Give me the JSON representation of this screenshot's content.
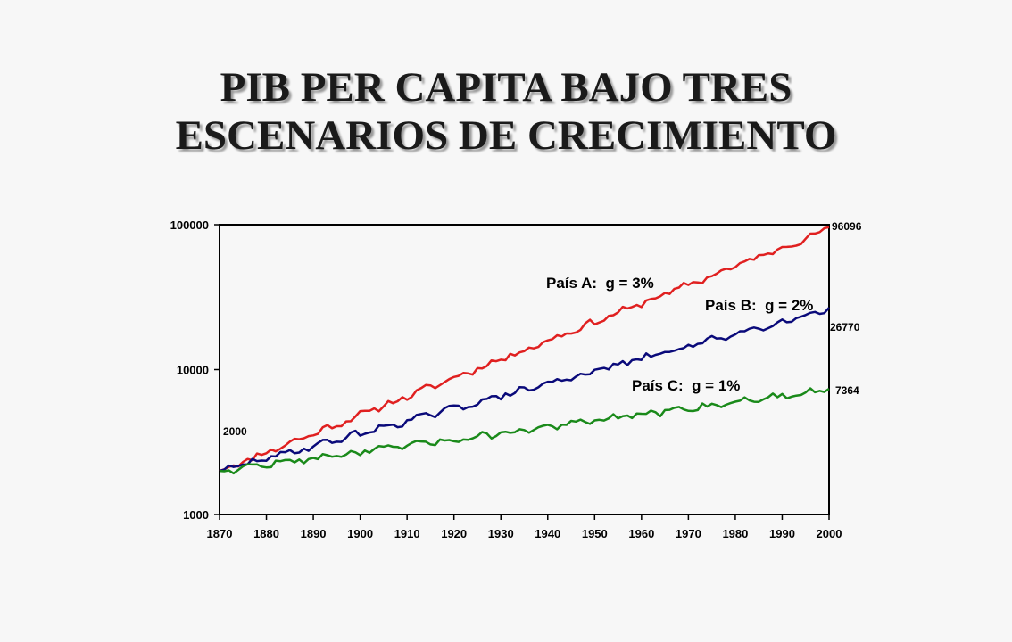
{
  "title": {
    "line1": "PIB PER CAPITA BAJO TRES",
    "line2": "ESCENARIOS DE CRECIMIENTO"
  },
  "chart_data": {
    "type": "line",
    "y_scale": "log",
    "ylim": [
      1000,
      100000
    ],
    "xlim": [
      1870,
      2000
    ],
    "y_ticks": [
      "1000",
      "10000",
      "100000"
    ],
    "x_ticks": [
      "1870",
      "1880",
      "1890",
      "1900",
      "1910",
      "1920",
      "1930",
      "1940",
      "1950",
      "1960",
      "1970",
      "1980",
      "1990",
      "2000"
    ],
    "grid": false,
    "legend": "none",
    "start_label": "2000",
    "series": [
      {
        "name": "País A:  g = 3%",
        "color": "#e02020",
        "start": 2000,
        "growth": 0.03,
        "end_value": 96096,
        "end_label": "96096"
      },
      {
        "name": "País B:  g = 2%",
        "color": "#0a0a7a",
        "start": 2000,
        "growth": 0.02,
        "end_value": 26770,
        "end_label": "26770"
      },
      {
        "name": "País C:  g = 1%",
        "color": "#1a8a1a",
        "start": 2000,
        "growth": 0.01,
        "end_value": 7364,
        "end_label": "7364"
      }
    ]
  }
}
